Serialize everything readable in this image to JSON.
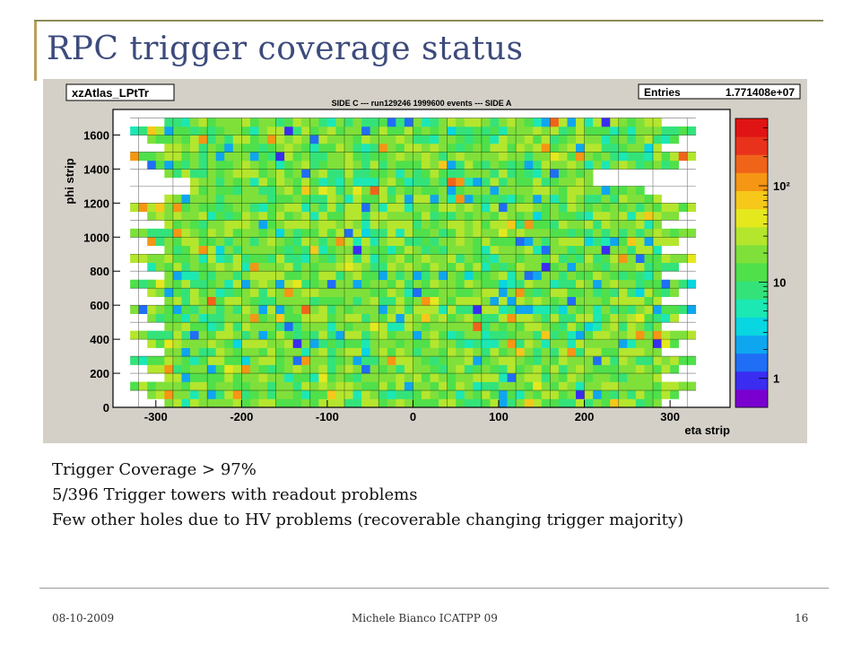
{
  "slide": {
    "title": "RPC trigger coverage status",
    "footer_date": "08-10-2009",
    "footer_center": "Michele Bianco ICATPP 09",
    "footer_page": "16"
  },
  "notes": [
    "Trigger Coverage  > 97%",
    "5/396 Trigger towers  with readout problems",
    "Few other holes due to HV problems (recoverable changing trigger majority)"
  ],
  "chart_data": {
    "type": "heatmap",
    "histogram_name": "xzAtlas_LPtTr",
    "stats_label": "Entries",
    "stats_value": "1.771408e+07",
    "title": "SIDE C ---   run129246 1999600 events  ---  SIDE A",
    "xlabel": "eta strip",
    "ylabel": "phi strip",
    "xlim": [
      -350,
      370
    ],
    "ylim": [
      0,
      1750
    ],
    "x_ticks": [
      -300,
      -200,
      -100,
      0,
      100,
      200,
      300
    ],
    "y_ticks": [
      0,
      200,
      400,
      600,
      800,
      1000,
      1200,
      1400,
      1600
    ],
    "z_scale": "log",
    "z_ticks": [
      {
        "value": 1,
        "label": "1"
      },
      {
        "value": 10,
        "label": "10"
      },
      {
        "value": 100,
        "label": "10²"
      }
    ],
    "zlim": [
      0.5,
      500
    ],
    "dominant_value_range": [
      5,
      30
    ],
    "colors": {
      "palette": [
        "#7a00d0",
        "#3a2cf0",
        "#1f6ef5",
        "#0fa6f0",
        "#08d6e0",
        "#1ce8b4",
        "#33e37a",
        "#4fe04a",
        "#7fe03a",
        "#b4e62d",
        "#e6e81e",
        "#f5c81a",
        "#f59614",
        "#f0641a",
        "#e8321c",
        "#e01414"
      ],
      "background": "#ffffff",
      "frame_bg": "#d4d0c8",
      "title_color": "#3d4b7c"
    }
  }
}
